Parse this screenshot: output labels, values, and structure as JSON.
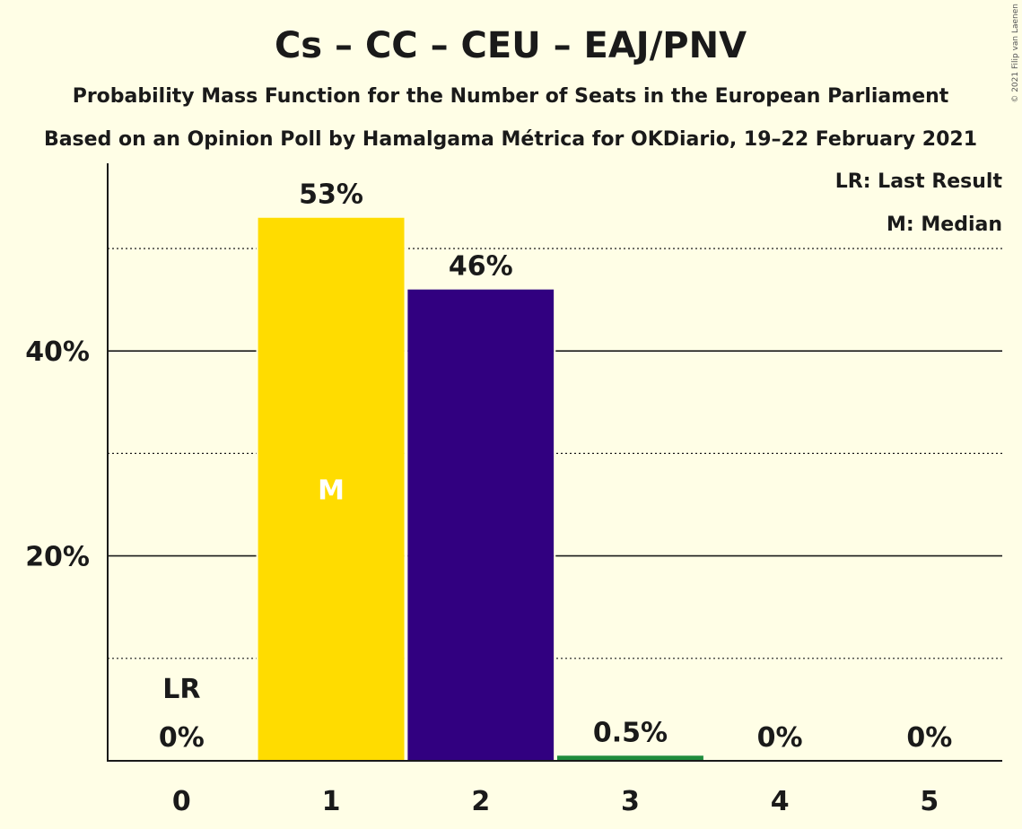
{
  "chart_data": {
    "type": "bar",
    "title": "Cs – CC – CEU – EAJ/PNV",
    "subtitle_1": "Probability Mass Function for the Number of Seats in the European Parliament",
    "subtitle_2": "Based on an Opinion Poll by Hamalgama Métrica for OKDiario, 19–22 February 2021",
    "categories": [
      "0",
      "1",
      "2",
      "3",
      "4",
      "5"
    ],
    "values": [
      0,
      53,
      46,
      0.5,
      0,
      0
    ],
    "value_labels": [
      "0%",
      "53%",
      "46%",
      "0.5%",
      "0%",
      "0%"
    ],
    "bar_colors": [
      "#FFDC00",
      "#FFDC00",
      "#310080",
      "#1E8C3C",
      "#FFDC00",
      "#FFDC00"
    ],
    "ylim": [
      0,
      58
    ],
    "y_ticks": [
      {
        "value": 20,
        "label": "20%"
      },
      {
        "value": 40,
        "label": "40%"
      }
    ],
    "y_minor_gridlines": [
      10,
      30,
      50
    ],
    "grid": true,
    "last_result_seat": 0,
    "last_result_label": "LR",
    "median_seat": 1,
    "median_label": "M",
    "legend": {
      "placement": "top-right",
      "last_result": "LR: Last Result",
      "median": "M: Median"
    },
    "copyright": "© 2021 Filip van Laenen"
  }
}
